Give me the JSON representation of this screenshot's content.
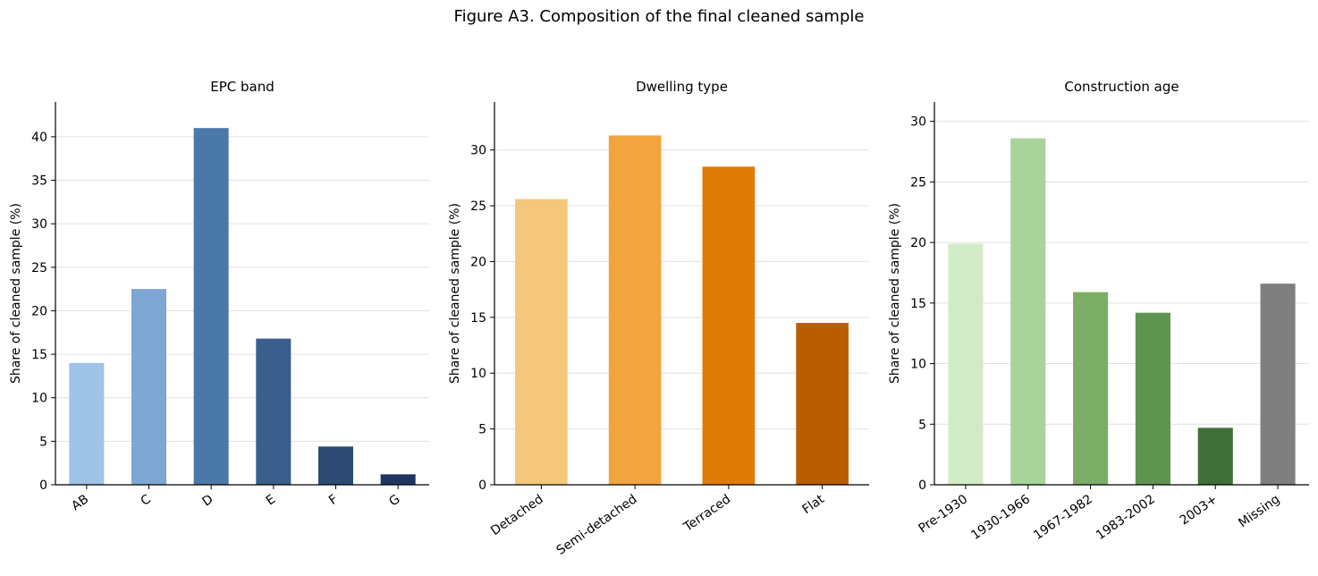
{
  "figure": {
    "title": "Figure A3. Composition of the final cleaned sample"
  },
  "chart_data": [
    {
      "type": "bar",
      "title": "EPC band",
      "xlabel": "",
      "ylabel": "Share of cleaned sample (%)",
      "categories": [
        "AB",
        "C",
        "D",
        "E",
        "F",
        "G"
      ],
      "values": [
        14.0,
        22.5,
        41.0,
        16.8,
        4.4,
        1.2
      ],
      "colors": [
        "#9fc2e7",
        "#7fa7d6",
        "#4a78a8",
        "#3a5f8c",
        "#2c4a72",
        "#1f3560"
      ],
      "ylim": [
        0,
        44
      ],
      "yticks": [
        0,
        5,
        10,
        15,
        20,
        25,
        30,
        35,
        40
      ],
      "grid": "y"
    },
    {
      "type": "bar",
      "title": "Dwelling type",
      "xlabel": "",
      "ylabel": "Share of cleaned sample (%)",
      "categories": [
        "Detached",
        "Semi-detached",
        "Terraced",
        "Flat"
      ],
      "values": [
        25.6,
        31.3,
        28.5,
        14.5
      ],
      "colors": [
        "#f5c77a",
        "#f2a440",
        "#e07b07",
        "#b85d02"
      ],
      "ylim": [
        0,
        34.3
      ],
      "yticks": [
        0,
        5,
        10,
        15,
        20,
        25,
        30
      ],
      "grid": "y"
    },
    {
      "type": "bar",
      "title": "Construction age",
      "xlabel": "",
      "ylabel": "Share of cleaned sample (%)",
      "categories": [
        "Pre-1930",
        "1930-1966",
        "1967-1982",
        "1983-2002",
        "2003+",
        "Missing"
      ],
      "values": [
        19.9,
        28.6,
        15.9,
        14.2,
        4.7,
        16.6
      ],
      "colors": [
        "#d2ebc7",
        "#a8d49c",
        "#7bad67",
        "#5e944f",
        "#3f6f38",
        "#7f7f7f"
      ],
      "ylim": [
        0,
        31.6
      ],
      "yticks": [
        0,
        5,
        10,
        15,
        20,
        25,
        30
      ],
      "grid": "y"
    }
  ]
}
